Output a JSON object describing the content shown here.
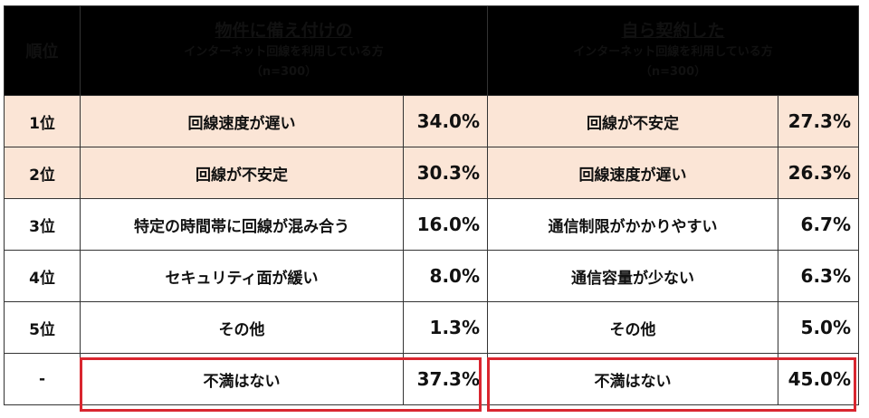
{
  "header": {
    "rank_label": "順位",
    "left": {
      "title": "物件に備え付けの",
      "subtitle": "インターネット回線を利用している方",
      "sample": "（n=300）"
    },
    "right": {
      "title": "自ら契約した",
      "subtitle": "インターネット回線を利用している方",
      "sample": "（n=300）"
    }
  },
  "rows": [
    {
      "rank": "1位",
      "left_item": "回線速度が遅い",
      "left_pct": "34.0%",
      "right_item": "回線が不安定",
      "right_pct": "27.3%"
    },
    {
      "rank": "2位",
      "left_item": "回線が不安定",
      "left_pct": "30.3%",
      "right_item": "回線速度が遅い",
      "right_pct": "26.3%"
    },
    {
      "rank": "3位",
      "left_item": "特定の時間帯に回線が混み合う",
      "left_pct": "16.0%",
      "right_item": "通信制限がかかりやすい",
      "right_pct": "6.7%"
    },
    {
      "rank": "4位",
      "left_item": "セキュリティ面が緩い",
      "left_pct": "8.0%",
      "right_item": "通信容量が少ない",
      "right_pct": "6.3%"
    },
    {
      "rank": "5位",
      "left_item": "その他",
      "left_pct": "1.3%",
      "right_item": "その他",
      "right_pct": "5.0%"
    },
    {
      "rank": "-",
      "left_item": "不満はない",
      "left_pct": "37.3%",
      "right_item": "不満はない",
      "right_pct": "45.0%"
    }
  ],
  "colors": {
    "header_bg": "#000000",
    "highlight_row_bg": "#fbe5d6",
    "highlight_border": "#d9262f"
  }
}
